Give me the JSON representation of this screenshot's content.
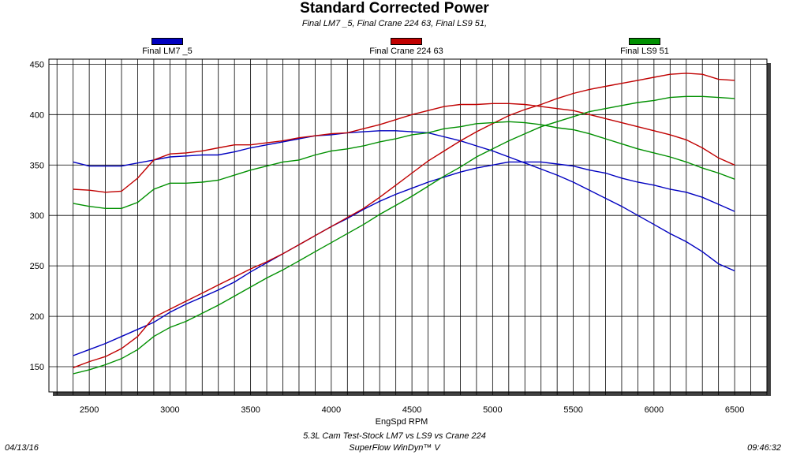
{
  "header": {
    "title": "Standard Corrected Power",
    "subtitle": "Final LM7 _5, Final Crane 224 63, Final LS9 51,"
  },
  "footer": {
    "date": "04/13/16",
    "time": "09:46:32",
    "line1": "5.3L Cam Test-Stock LM7 vs LS9 vs Crane 224",
    "line2": "SuperFlow WinDyn™ V"
  },
  "chart_data": {
    "type": "line",
    "title": "Standard Corrected Power",
    "subtitle": "Final LM7 _5, Final Crane 224 63, Final LS9 51,",
    "xlabel": "EngSpd RPM",
    "ylabel": "",
    "xlim": [
      2250,
      6700
    ],
    "ylim": [
      125,
      455
    ],
    "xticks": [
      2500,
      3000,
      3500,
      4000,
      4500,
      5000,
      5500,
      6000,
      6500
    ],
    "yticks": [
      150,
      200,
      250,
      300,
      350,
      400,
      450
    ],
    "x_minor_step": 100,
    "grid": true,
    "legend_position": "top",
    "x": [
      2400,
      2500,
      2600,
      2700,
      2800,
      2900,
      3000,
      3100,
      3200,
      3300,
      3400,
      3500,
      3600,
      3700,
      3800,
      3900,
      4000,
      4100,
      4200,
      4300,
      4400,
      4500,
      4600,
      4700,
      4800,
      4900,
      5000,
      5100,
      5200,
      5300,
      5400,
      5500,
      5600,
      5700,
      5800,
      5900,
      6000,
      6100,
      6200,
      6300,
      6400,
      6500
    ],
    "series": [
      {
        "name": "Final LM7 _5",
        "color": "#0000c0",
        "torque": [
          353,
          349,
          349,
          349,
          352,
          355,
          358,
          359,
          360,
          360,
          363,
          367,
          370,
          373,
          376,
          379,
          380,
          382,
          383,
          384,
          384,
          383,
          382,
          378,
          374,
          369,
          364,
          358,
          352,
          346,
          340,
          333,
          325,
          317,
          309,
          300,
          291,
          282,
          274,
          264,
          252,
          245
        ],
        "power": [
          161,
          167,
          173,
          180,
          187,
          194,
          204,
          212,
          219,
          226,
          234,
          244,
          253,
          262,
          271,
          280,
          289,
          297,
          306,
          314,
          321,
          327,
          333,
          338,
          343,
          347,
          350,
          353,
          353,
          353,
          351,
          349,
          345,
          342,
          337,
          333,
          330,
          326,
          323,
          318,
          311,
          304
        ]
      },
      {
        "name": "Final Crane 224 63",
        "color": "#c00000",
        "torque": [
          326,
          325,
          323,
          324,
          337,
          355,
          361,
          362,
          364,
          367,
          370,
          370,
          372,
          374,
          377,
          379,
          381,
          382,
          386,
          390,
          395,
          400,
          404,
          408,
          410,
          410,
          411,
          411,
          410,
          408,
          406,
          404,
          400,
          396,
          392,
          388,
          384,
          380,
          375,
          367,
          357,
          350
        ],
        "power": [
          149,
          155,
          160,
          168,
          180,
          199,
          207,
          215,
          223,
          231,
          239,
          247,
          254,
          262,
          271,
          280,
          289,
          298,
          307,
          318,
          330,
          342,
          354,
          364,
          374,
          383,
          391,
          399,
          405,
          410,
          416,
          421,
          425,
          428,
          431,
          434,
          437,
          440,
          441,
          440,
          435,
          434
        ]
      },
      {
        "name": "Final LS9 51",
        "color": "#009000",
        "torque": [
          312,
          309,
          307,
          307,
          313,
          326,
          332,
          332,
          333,
          335,
          340,
          345,
          349,
          353,
          355,
          360,
          364,
          366,
          369,
          373,
          376,
          380,
          382,
          386,
          388,
          391,
          392,
          393,
          392,
          390,
          387,
          385,
          381,
          376,
          371,
          366,
          362,
          358,
          353,
          347,
          342,
          336
        ],
        "power": [
          143,
          147,
          152,
          158,
          167,
          180,
          189,
          195,
          203,
          211,
          220,
          229,
          238,
          246,
          255,
          264,
          273,
          282,
          291,
          301,
          310,
          319,
          329,
          339,
          348,
          358,
          366,
          374,
          381,
          388,
          393,
          398,
          403,
          406,
          409,
          412,
          414,
          417,
          418,
          418,
          417,
          416
        ]
      }
    ]
  }
}
